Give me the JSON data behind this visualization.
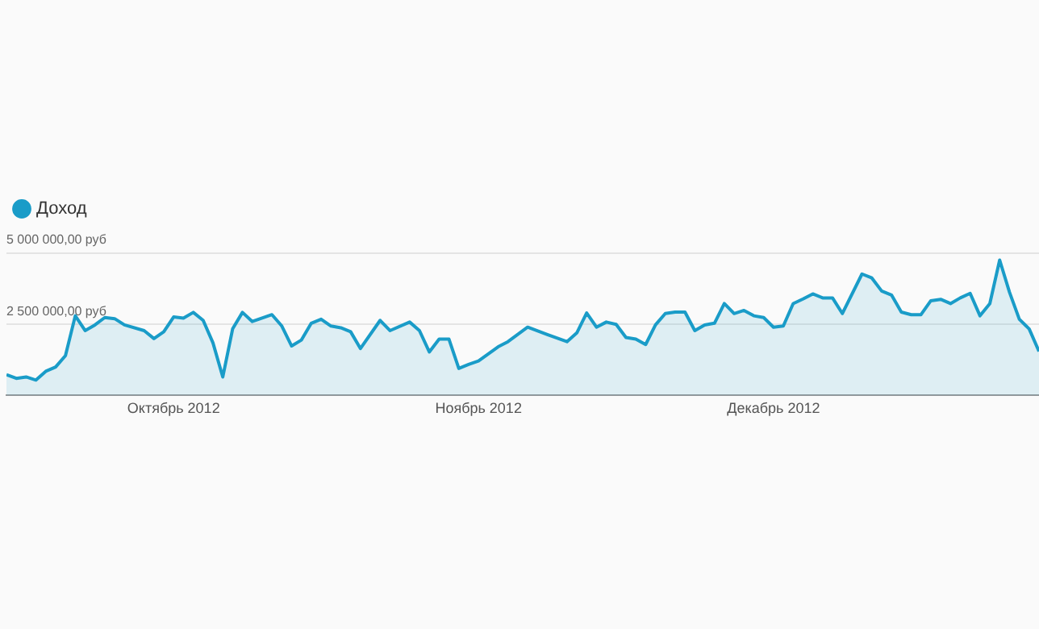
{
  "chart_data": {
    "type": "area",
    "x": [
      "2012-09-14",
      "2012-09-15",
      "2012-09-16",
      "2012-09-17",
      "2012-09-18",
      "2012-09-19",
      "2012-09-20",
      "2012-09-21",
      "2012-09-22",
      "2012-09-23",
      "2012-09-24",
      "2012-09-25",
      "2012-09-26",
      "2012-09-28",
      "2012-09-29",
      "2012-09-30",
      "2012-10-01",
      "2012-10-02",
      "2012-10-03",
      "2012-10-04",
      "2012-10-05",
      "2012-10-06",
      "2012-10-07",
      "2012-10-08",
      "2012-10-09",
      "2012-10-11",
      "2012-10-12",
      "2012-10-13",
      "2012-10-14",
      "2012-10-15",
      "2012-10-16",
      "2012-10-17",
      "2012-10-18",
      "2012-10-19",
      "2012-10-20",
      "2012-10-22",
      "2012-10-23",
      "2012-10-25",
      "2012-10-26",
      "2012-10-27",
      "2012-10-28",
      "2012-10-29",
      "2012-10-30",
      "2012-10-31",
      "2012-11-01",
      "2012-11-03",
      "2012-11-04",
      "2012-11-06",
      "2012-11-08",
      "2012-11-10",
      "2012-11-11",
      "2012-11-12",
      "2012-11-13",
      "2012-11-14",
      "2012-11-15",
      "2012-11-16",
      "2012-11-17",
      "2012-11-18",
      "2012-11-19",
      "2012-11-20",
      "2012-11-21",
      "2012-11-22",
      "2012-11-23",
      "2012-11-24",
      "2012-11-25",
      "2012-11-26",
      "2012-11-27",
      "2012-11-28",
      "2012-11-29",
      "2012-11-30",
      "2012-12-01",
      "2012-12-02",
      "2012-12-03",
      "2012-12-04",
      "2012-12-05",
      "2012-12-06",
      "2012-12-07",
      "2012-12-08",
      "2012-12-10",
      "2012-12-11",
      "2012-12-12",
      "2012-12-13",
      "2012-12-14",
      "2012-12-15",
      "2012-12-16",
      "2012-12-17",
      "2012-12-18",
      "2012-12-19",
      "2012-12-20",
      "2012-12-21",
      "2012-12-22",
      "2012-12-23",
      "2012-12-24",
      "2012-12-25",
      "2012-12-26",
      "2012-12-27",
      "2012-12-28"
    ],
    "series": [
      {
        "name": "Доход",
        "color": "#1a9cc8",
        "values": [
          730000,
          600000,
          650000,
          540000,
          850000,
          1000000,
          1400000,
          2800000,
          2280000,
          2480000,
          2740000,
          2700000,
          2480000,
          2280000,
          2000000,
          2240000,
          2760000,
          2720000,
          2920000,
          2640000,
          1850000,
          650000,
          2340000,
          2920000,
          2600000,
          2840000,
          2440000,
          1740000,
          1950000,
          2540000,
          2680000,
          2440000,
          2380000,
          2240000,
          1650000,
          2640000,
          2280000,
          2580000,
          2280000,
          1530000,
          1980000,
          1980000,
          950000,
          1090000,
          1210000,
          1710000,
          1890000,
          2400000,
          2140000,
          1890000,
          2200000,
          2900000,
          2400000,
          2580000,
          2500000,
          2040000,
          1980000,
          1790000,
          2480000,
          2880000,
          2930000,
          2930000,
          2280000,
          2480000,
          2540000,
          3230000,
          2880000,
          2990000,
          2800000,
          2740000,
          2400000,
          2440000,
          3230000,
          3390000,
          3570000,
          3430000,
          3430000,
          2880000,
          4270000,
          4130000,
          3670000,
          3530000,
          2930000,
          2840000,
          2840000,
          3330000,
          3380000,
          3230000,
          3430000,
          3590000,
          2800000,
          3230000,
          4760000,
          3630000,
          2680000,
          2340000,
          1550000
        ]
      }
    ],
    "xlim": [
      "2012-09-14",
      "2012-12-28"
    ],
    "xticks": [
      {
        "value": "2012-10-01",
        "label": "Октябрь 2012"
      },
      {
        "value": "2012-11-01",
        "label": "Ноябрь 2012"
      },
      {
        "value": "2012-12-01",
        "label": "Декабрь 2012"
      }
    ],
    "ylim": [
      0,
      5000000
    ],
    "yticks": [
      {
        "value": 2500000,
        "label": "2 500 000,00 руб"
      },
      {
        "value": 5000000,
        "label": "5 000 000,00 руб"
      }
    ],
    "grid": "y",
    "legend": "top left",
    "marker": "none",
    "line_style": "solid"
  }
}
